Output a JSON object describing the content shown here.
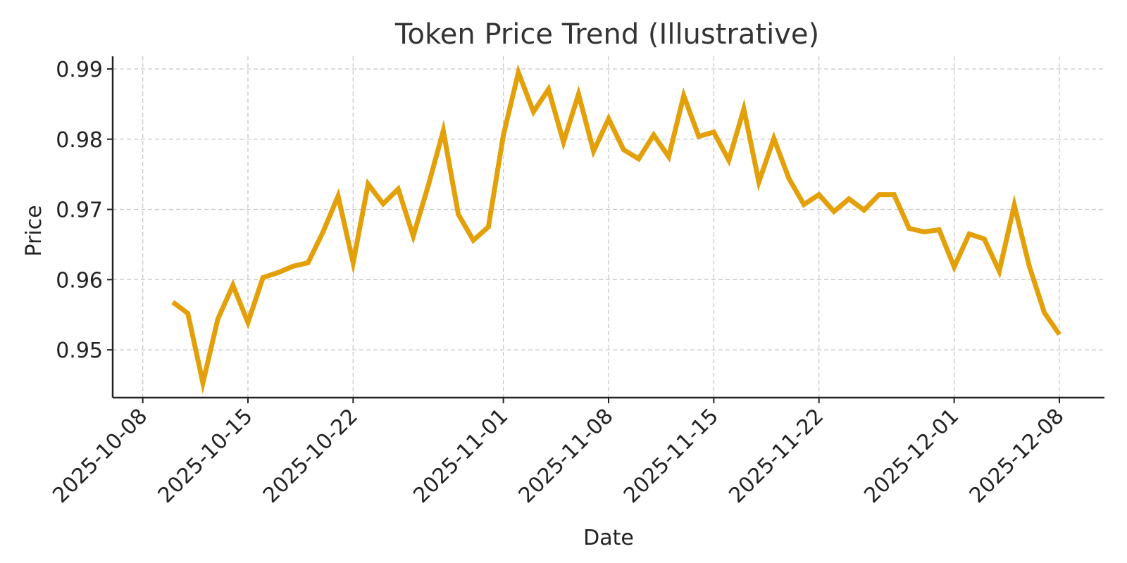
{
  "chart_data": {
    "type": "line",
    "title": "Token Price Trend (Illustrative)",
    "xlabel": "Date",
    "ylabel": "Price",
    "x_tick_labels": [
      "2025-10-08",
      "2025-10-15",
      "2025-10-22",
      "2025-11-01",
      "2025-11-08",
      "2025-11-15",
      "2025-11-22",
      "2025-12-01",
      "2025-12-08"
    ],
    "y_tick_labels": [
      "0.95",
      "0.96",
      "0.97",
      "0.98",
      "0.99"
    ],
    "y_ticks": [
      0.95,
      0.96,
      0.97,
      0.98,
      0.99
    ],
    "xlim": [
      "2025-10-06",
      "2025-12-11"
    ],
    "ylim": [
      0.9432,
      0.9918
    ],
    "grid": true,
    "series": [
      {
        "color": "#E3A008",
        "x": [
          "2025-10-10",
          "2025-10-11",
          "2025-10-12",
          "2025-10-13",
          "2025-10-14",
          "2025-10-15",
          "2025-10-16",
          "2025-10-17",
          "2025-10-18",
          "2025-10-19",
          "2025-10-20",
          "2025-10-21",
          "2025-10-22",
          "2025-10-23",
          "2025-10-24",
          "2025-10-25",
          "2025-10-26",
          "2025-10-27",
          "2025-10-28",
          "2025-10-29",
          "2025-10-30",
          "2025-10-31",
          "2025-11-01",
          "2025-11-02",
          "2025-11-03",
          "2025-11-04",
          "2025-11-05",
          "2025-11-06",
          "2025-11-07",
          "2025-11-08",
          "2025-11-09",
          "2025-11-10",
          "2025-11-11",
          "2025-11-12",
          "2025-11-13",
          "2025-11-14",
          "2025-11-15",
          "2025-11-16",
          "2025-11-17",
          "2025-11-18",
          "2025-11-19",
          "2025-11-20",
          "2025-11-21",
          "2025-11-22",
          "2025-11-23",
          "2025-11-24",
          "2025-11-25",
          "2025-11-26",
          "2025-11-27",
          "2025-11-28",
          "2025-11-29",
          "2025-11-30",
          "2025-12-01",
          "2025-12-02",
          "2025-12-03",
          "2025-12-04",
          "2025-12-05",
          "2025-12-06",
          "2025-12-07",
          "2025-12-08"
        ],
        "y": [
          0.9568,
          0.9552,
          0.9453,
          0.9544,
          0.9592,
          0.9539,
          0.9603,
          0.961,
          0.9619,
          0.9624,
          0.9668,
          0.9719,
          0.9624,
          0.9736,
          0.9708,
          0.9729,
          0.9662,
          0.9734,
          0.9812,
          0.9693,
          0.9656,
          0.9675,
          0.9806,
          0.9895,
          0.9839,
          0.9871,
          0.9796,
          0.9864,
          0.9783,
          0.9829,
          0.9785,
          0.9772,
          0.9806,
          0.9775,
          0.9862,
          0.9804,
          0.981,
          0.977,
          0.9843,
          0.9739,
          0.9801,
          0.9744,
          0.9707,
          0.9721,
          0.9697,
          0.9715,
          0.9699,
          0.9721,
          0.9721,
          0.9673,
          0.9668,
          0.9671,
          0.9618,
          0.9665,
          0.9658,
          0.9612,
          0.9706,
          0.9619,
          0.9553,
          0.9522
        ]
      }
    ]
  }
}
